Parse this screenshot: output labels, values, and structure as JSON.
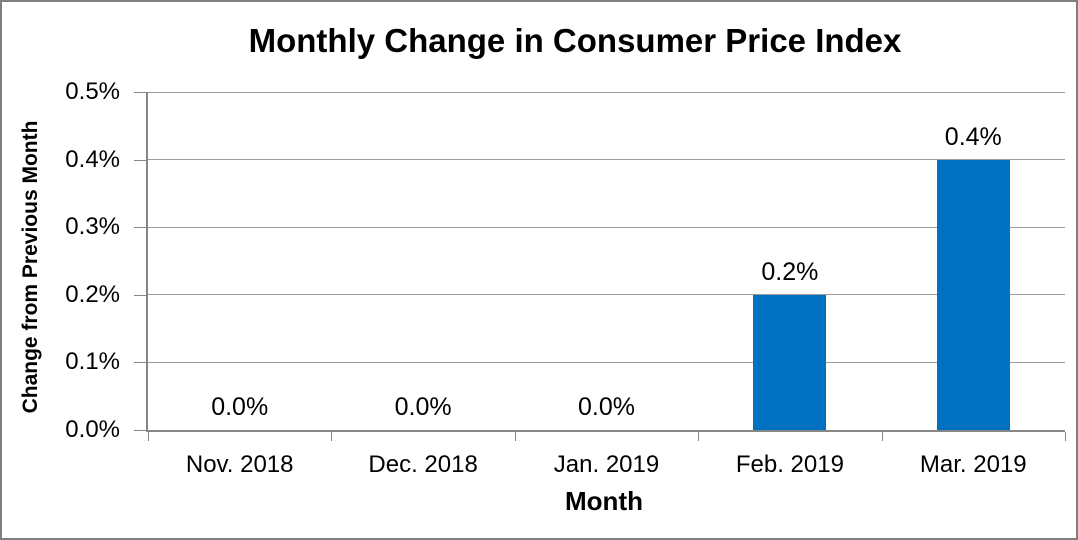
{
  "chart_data": {
    "type": "bar",
    "title": "Monthly Change in Consumer Price Index",
    "xlabel": "Month",
    "ylabel": "Change from Previous Month",
    "categories": [
      "Nov. 2018",
      "Dec. 2018",
      "Jan. 2019",
      "Feb. 2019",
      "Mar. 2019"
    ],
    "values": [
      0.0,
      0.0,
      0.0,
      0.2,
      0.4
    ],
    "data_labels": [
      "0.0%",
      "0.0%",
      "0.0%",
      "0.2%",
      "0.4%"
    ],
    "ytick_values": [
      0.0,
      0.1,
      0.2,
      0.3,
      0.4,
      0.5
    ],
    "ytick_labels": [
      "0.0%",
      "0.1%",
      "0.2%",
      "0.3%",
      "0.4%",
      "0.5%"
    ],
    "ylim": [
      0,
      0.5
    ],
    "grid": true,
    "legend": false,
    "colors": {
      "bar": "#0070C0",
      "gridline": "#9C9C9C",
      "axis": "#868686",
      "border": "#7F7F7F",
      "background": "#FFFFFF",
      "text": "#000000"
    }
  }
}
